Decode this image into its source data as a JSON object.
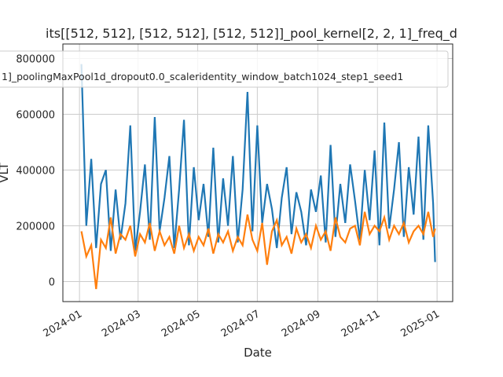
{
  "chart_data": {
    "type": "line",
    "title": "its[[512, 512], [512, 512], [512, 512]]_pool_kernel[2, 2, 1]_freq_d",
    "xlabel": "Date",
    "ylabel": "VLT",
    "x": [
      "2024-01-03",
      "2024-01-08",
      "2024-01-13",
      "2024-01-18",
      "2024-01-23",
      "2024-01-28",
      "2024-02-02",
      "2024-02-07",
      "2024-02-12",
      "2024-02-17",
      "2024-02-22",
      "2024-02-27",
      "2024-03-03",
      "2024-03-08",
      "2024-03-13",
      "2024-03-18",
      "2024-03-23",
      "2024-03-28",
      "2024-04-02",
      "2024-04-07",
      "2024-04-12",
      "2024-04-17",
      "2024-04-22",
      "2024-04-27",
      "2024-05-02",
      "2024-05-07",
      "2024-05-12",
      "2024-05-17",
      "2024-05-22",
      "2024-05-27",
      "2024-06-01",
      "2024-06-06",
      "2024-06-11",
      "2024-06-16",
      "2024-06-21",
      "2024-06-26",
      "2024-07-01",
      "2024-07-06",
      "2024-07-11",
      "2024-07-16",
      "2024-07-21",
      "2024-07-26",
      "2024-07-31",
      "2024-08-05",
      "2024-08-10",
      "2024-08-15",
      "2024-08-20",
      "2024-08-25",
      "2024-08-30",
      "2024-09-04",
      "2024-09-09",
      "2024-09-14",
      "2024-09-19",
      "2024-09-24",
      "2024-09-29",
      "2024-10-04",
      "2024-10-09",
      "2024-10-14",
      "2024-10-19",
      "2024-10-24",
      "2024-10-29",
      "2024-11-03",
      "2024-11-08",
      "2024-11-13",
      "2024-11-18",
      "2024-11-23",
      "2024-11-28",
      "2024-12-03",
      "2024-12-08",
      "2024-12-13",
      "2024-12-18",
      "2024-12-23",
      "2024-12-28",
      "2024-12-30"
    ],
    "series": [
      {
        "color": "#1f77b4",
        "values": [
          780000,
          200000,
          440000,
          120000,
          350000,
          400000,
          110000,
          330000,
          150000,
          280000,
          560000,
          110000,
          250000,
          420000,
          150000,
          590000,
          180000,
          300000,
          450000,
          120000,
          330000,
          580000,
          130000,
          410000,
          220000,
          350000,
          160000,
          480000,
          140000,
          370000,
          200000,
          450000,
          140000,
          330000,
          680000,
          180000,
          560000,
          210000,
          350000,
          260000,
          120000,
          300000,
          410000,
          170000,
          320000,
          250000,
          130000,
          330000,
          250000,
          380000,
          140000,
          490000,
          160000,
          350000,
          210000,
          420000,
          290000,
          150000,
          400000,
          220000,
          470000,
          130000,
          570000,
          190000,
          330000,
          500000,
          160000,
          410000,
          240000,
          520000,
          150000,
          560000,
          280000,
          70000
        ]
      },
      {
        "name": "1]_poolingMaxPool1d_dropout0.0_scaleridentity_window_batch1024_step1_seed1",
        "color": "#ff7f0e",
        "values": [
          180000,
          90000,
          130000,
          -27000,
          150000,
          120000,
          230000,
          100000,
          170000,
          150000,
          200000,
          90000,
          170000,
          140000,
          210000,
          110000,
          180000,
          130000,
          160000,
          100000,
          200000,
          120000,
          170000,
          110000,
          160000,
          130000,
          190000,
          100000,
          170000,
          140000,
          180000,
          110000,
          160000,
          130000,
          240000,
          150000,
          110000,
          210000,
          60000,
          180000,
          220000,
          130000,
          160000,
          100000,
          190000,
          140000,
          170000,
          120000,
          200000,
          150000,
          180000,
          110000,
          230000,
          160000,
          140000,
          190000,
          200000,
          130000,
          250000,
          170000,
          200000,
          180000,
          230000,
          150000,
          200000,
          170000,
          210000,
          140000,
          180000,
          200000,
          170000,
          250000,
          160000,
          190000
        ]
      }
    ],
    "xlim": [
      "2023-12-15",
      "2025-01-17"
    ],
    "xticks": [
      {
        "value": "2024-01-01",
        "label": "2024-01"
      },
      {
        "value": "2024-03-01",
        "label": "2024-03"
      },
      {
        "value": "2024-05-01",
        "label": "2024-05"
      },
      {
        "value": "2024-07-01",
        "label": "2024-07"
      },
      {
        "value": "2024-09-01",
        "label": "2024-09"
      },
      {
        "value": "2024-11-01",
        "label": "2024-11"
      },
      {
        "value": "2025-01-01",
        "label": "2025-01"
      }
    ],
    "ylim": [
      -72000,
      852000
    ],
    "yticks": [
      0,
      200000,
      400000,
      600000,
      800000
    ],
    "grid": true,
    "legend": "upper center"
  }
}
